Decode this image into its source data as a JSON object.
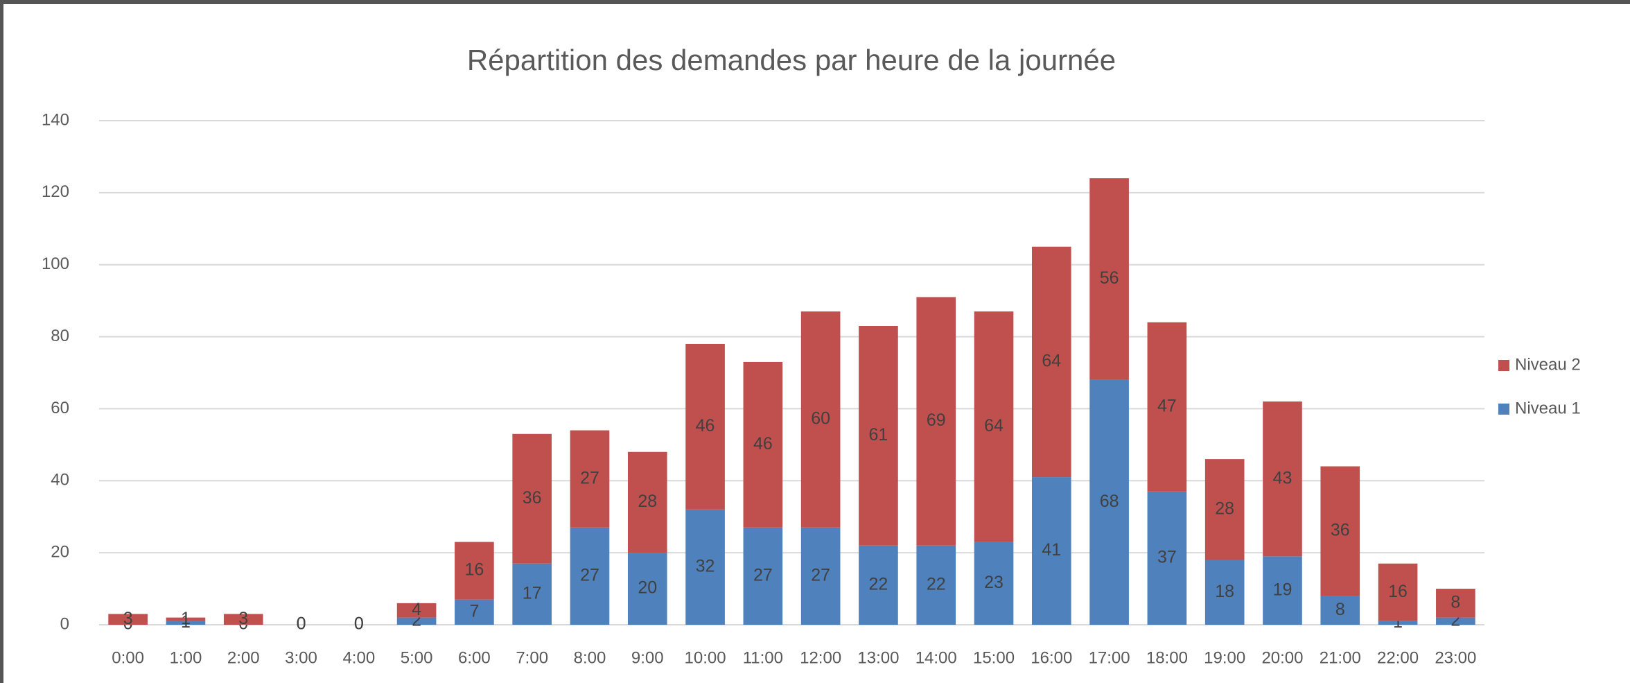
{
  "chart_data": {
    "type": "stacked_bar",
    "title": "Répartition des demandes par heure de la journée",
    "categories": [
      "0:00",
      "1:00",
      "2:00",
      "3:00",
      "4:00",
      "5:00",
      "6:00",
      "7:00",
      "8:00",
      "9:00",
      "10:00",
      "11:00",
      "12:00",
      "13:00",
      "14:00",
      "15:00",
      "16:00",
      "17:00",
      "18:00",
      "19:00",
      "20:00",
      "21:00",
      "22:00",
      "23:00"
    ],
    "series": [
      {
        "name": "Niveau 1",
        "color": "#4f81bd",
        "values": [
          0,
          1,
          0,
          0,
          0,
          2,
          7,
          17,
          27,
          20,
          32,
          27,
          27,
          22,
          22,
          23,
          41,
          68,
          37,
          18,
          19,
          8,
          1,
          2
        ]
      },
      {
        "name": "Niveau 2",
        "color": "#c0504d",
        "values": [
          3,
          1,
          3,
          0,
          0,
          4,
          16,
          36,
          27,
          28,
          46,
          46,
          60,
          61,
          69,
          64,
          64,
          56,
          47,
          28,
          43,
          36,
          16,
          8
        ]
      }
    ],
    "ylim": [
      0,
      140
    ],
    "yticks": [
      0,
      20,
      40,
      60,
      80,
      100,
      120,
      140
    ],
    "grid": true,
    "legend": "right"
  }
}
